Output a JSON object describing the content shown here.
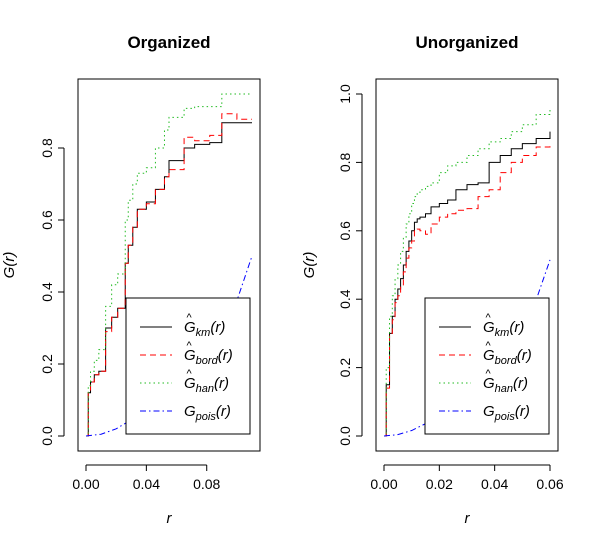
{
  "chart_data": [
    {
      "type": "line",
      "title": "Organized",
      "xlabel": "r",
      "ylabel": "G(r)",
      "xlim": [
        0,
        0.11
      ],
      "ylim": [
        0,
        0.95
      ],
      "xticks": [
        0.0,
        0.04,
        0.08
      ],
      "xtick_labels": [
        "0.00",
        "0.04",
        "0.08"
      ],
      "yticks": [
        0.0,
        0.2,
        0.4,
        0.6,
        0.8
      ],
      "ytick_labels": [
        "0.0",
        "0.2",
        "0.4",
        "0.6",
        "0.8"
      ],
      "grid": false,
      "legend_position": "bottom-right",
      "series": [
        {
          "key": "km",
          "name": "Ĝ_km(r)",
          "style": "solid",
          "color": "#000000",
          "step": true,
          "x": [
            0,
            0.0015,
            0.003,
            0.0055,
            0.0085,
            0.013,
            0.017,
            0.021,
            0.026,
            0.028,
            0.031,
            0.034,
            0.04,
            0.046,
            0.052,
            0.055,
            0.065,
            0.072,
            0.082,
            0.09,
            0.11
          ],
          "y": [
            0,
            0.12,
            0.15,
            0.17,
            0.18,
            0.3,
            0.33,
            0.355,
            0.48,
            0.53,
            0.58,
            0.63,
            0.65,
            0.685,
            0.72,
            0.765,
            0.8,
            0.81,
            0.815,
            0.87,
            0.87
          ]
        },
        {
          "key": "bord",
          "name": "Ĝ_bord(r)",
          "style": "dashed",
          "color": "#ff0000",
          "step": true,
          "x": [
            0,
            0.0015,
            0.003,
            0.0055,
            0.0085,
            0.013,
            0.017,
            0.021,
            0.026,
            0.028,
            0.031,
            0.034,
            0.04,
            0.046,
            0.052,
            0.055,
            0.065,
            0.072,
            0.082,
            0.09,
            0.1,
            0.11
          ],
          "y": [
            0,
            0.12,
            0.15,
            0.17,
            0.18,
            0.29,
            0.33,
            0.355,
            0.48,
            0.53,
            0.58,
            0.63,
            0.645,
            0.685,
            0.72,
            0.74,
            0.83,
            0.82,
            0.835,
            0.895,
            0.88,
            0.88
          ]
        },
        {
          "key": "han",
          "name": "Ĝ_han(r)",
          "style": "dotted",
          "color": "#22bb22",
          "step": true,
          "x": [
            0,
            0.0015,
            0.003,
            0.0055,
            0.0085,
            0.013,
            0.017,
            0.021,
            0.026,
            0.028,
            0.031,
            0.034,
            0.04,
            0.046,
            0.052,
            0.055,
            0.065,
            0.072,
            0.082,
            0.09,
            0.11
          ],
          "y": [
            0,
            0.14,
            0.18,
            0.21,
            0.24,
            0.36,
            0.42,
            0.45,
            0.6,
            0.655,
            0.7,
            0.73,
            0.745,
            0.8,
            0.85,
            0.885,
            0.91,
            0.915,
            0.915,
            0.95,
            0.95
          ]
        },
        {
          "key": "pois",
          "name": "G_pois(r)",
          "style": "dashdot",
          "color": "#0000ff",
          "step": false,
          "x": [
            0,
            0.01,
            0.02,
            0.03,
            0.04,
            0.05,
            0.06,
            0.07,
            0.08,
            0.09,
            0.1,
            0.11
          ],
          "y": [
            0,
            0.005,
            0.02,
            0.045,
            0.078,
            0.118,
            0.163,
            0.213,
            0.266,
            0.321,
            0.376,
            0.5
          ]
        }
      ]
    },
    {
      "type": "line",
      "title": "Unorganized",
      "xlabel": "r",
      "ylabel": "G(r)",
      "xlim": [
        0,
        0.06
      ],
      "ylim": [
        0,
        1.0
      ],
      "xticks": [
        0.0,
        0.02,
        0.04,
        0.06
      ],
      "xtick_labels": [
        "0.00",
        "0.02",
        "0.04",
        "0.06"
      ],
      "yticks": [
        0.0,
        0.2,
        0.4,
        0.6,
        0.8,
        1.0
      ],
      "ytick_labels": [
        "0.0",
        "0.2",
        "0.4",
        "0.6",
        "0.8",
        "1.0"
      ],
      "grid": false,
      "legend_position": "bottom-right",
      "series": [
        {
          "key": "km",
          "name": "Ĝ_km(r)",
          "style": "solid",
          "color": "#000000",
          "step": true,
          "x": [
            0,
            0.0008,
            0.002,
            0.003,
            0.004,
            0.005,
            0.006,
            0.007,
            0.008,
            0.009,
            0.01,
            0.011,
            0.012,
            0.013,
            0.015,
            0.017,
            0.02,
            0.023,
            0.026,
            0.03,
            0.034,
            0.038,
            0.042,
            0.046,
            0.05,
            0.055,
            0.06
          ],
          "y": [
            0,
            0.15,
            0.3,
            0.35,
            0.4,
            0.43,
            0.46,
            0.5,
            0.54,
            0.57,
            0.6,
            0.625,
            0.635,
            0.64,
            0.65,
            0.67,
            0.68,
            0.69,
            0.72,
            0.735,
            0.74,
            0.8,
            0.82,
            0.84,
            0.855,
            0.87,
            0.89
          ]
        },
        {
          "key": "bord",
          "name": "Ĝ_bord(r)",
          "style": "dashed",
          "color": "#ff0000",
          "step": true,
          "x": [
            0,
            0.0008,
            0.002,
            0.003,
            0.004,
            0.005,
            0.006,
            0.007,
            0.008,
            0.009,
            0.01,
            0.011,
            0.012,
            0.013,
            0.015,
            0.017,
            0.02,
            0.023,
            0.026,
            0.03,
            0.034,
            0.038,
            0.042,
            0.046,
            0.05,
            0.055,
            0.06
          ],
          "y": [
            0,
            0.14,
            0.3,
            0.34,
            0.39,
            0.41,
            0.44,
            0.48,
            0.52,
            0.55,
            0.57,
            0.6,
            0.605,
            0.6,
            0.59,
            0.62,
            0.64,
            0.65,
            0.66,
            0.665,
            0.7,
            0.72,
            0.77,
            0.8,
            0.82,
            0.845,
            0.85
          ]
        },
        {
          "key": "han",
          "name": "Ĝ_han(r)",
          "style": "dotted",
          "color": "#22bb22",
          "step": true,
          "x": [
            0,
            0.0008,
            0.002,
            0.003,
            0.004,
            0.005,
            0.006,
            0.007,
            0.008,
            0.009,
            0.01,
            0.011,
            0.012,
            0.013,
            0.015,
            0.017,
            0.02,
            0.023,
            0.026,
            0.03,
            0.034,
            0.038,
            0.042,
            0.046,
            0.05,
            0.055,
            0.06
          ],
          "y": [
            0,
            0.2,
            0.35,
            0.41,
            0.46,
            0.5,
            0.54,
            0.58,
            0.62,
            0.65,
            0.68,
            0.7,
            0.71,
            0.72,
            0.73,
            0.74,
            0.77,
            0.79,
            0.8,
            0.82,
            0.84,
            0.86,
            0.87,
            0.89,
            0.91,
            0.94,
            0.955
          ]
        },
        {
          "key": "pois",
          "name": "G_pois(r)",
          "style": "dashdot",
          "color": "#0000ff",
          "step": false,
          "x": [
            0,
            0.005,
            0.01,
            0.015,
            0.02,
            0.025,
            0.03,
            0.035,
            0.04,
            0.045,
            0.05,
            0.055,
            0.06
          ],
          "y": [
            0,
            0.004,
            0.016,
            0.036,
            0.063,
            0.097,
            0.137,
            0.182,
            0.232,
            0.285,
            0.341,
            0.398,
            0.515
          ]
        }
      ]
    }
  ]
}
